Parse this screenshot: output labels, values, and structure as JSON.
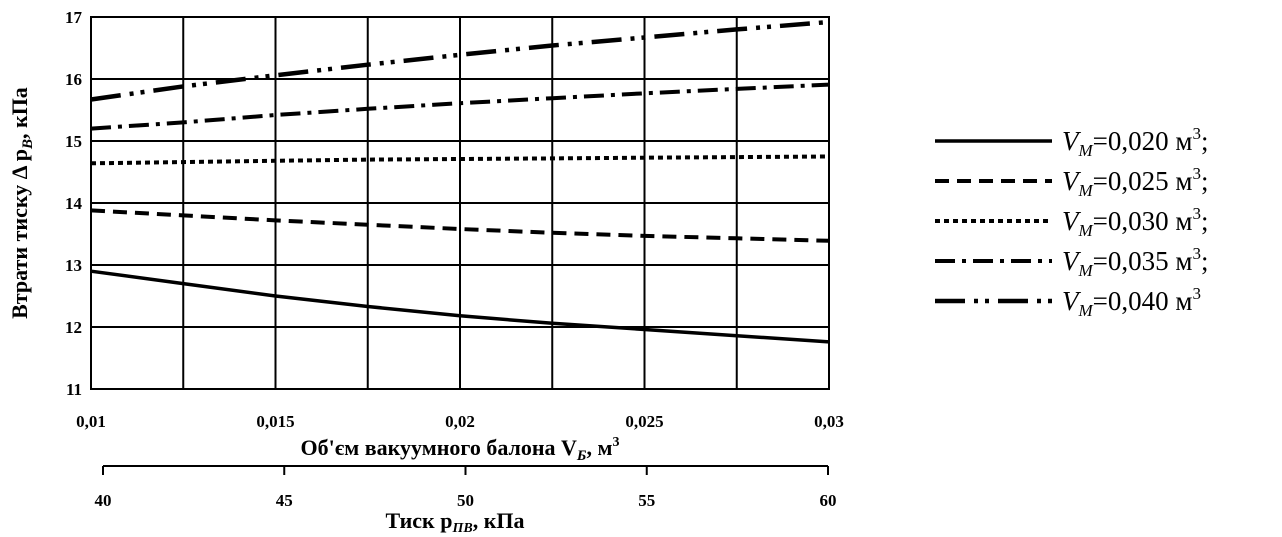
{
  "chart_data": {
    "type": "line",
    "ylabel": "Втрати тиску Δ p",
    "ylabel_sub": "B",
    "ylabel_unit": ", кПа",
    "xlabel": "Об'єм вакуумного балона V",
    "xlabel_sub": "Б",
    "xlabel_unit": ", м",
    "xlabel_sup": "3",
    "x2label": "Тиск p",
    "x2label_sub": "ПВ",
    "x2label_unit": ", кПа",
    "xlim": [
      0.01,
      0.03
    ],
    "ylim": [
      11,
      17
    ],
    "x_ticks": [
      "0,01",
      "0,015",
      "0,02",
      "0,025",
      "0,03"
    ],
    "x_tick_values": [
      0.01,
      0.015,
      0.02,
      0.025,
      0.03
    ],
    "x2lim": [
      40,
      60
    ],
    "x2_ticks": [
      "40",
      "45",
      "50",
      "55",
      "60"
    ],
    "x2_tick_values": [
      40,
      45,
      50,
      55,
      60
    ],
    "y_ticks": [
      "11",
      "12",
      "13",
      "14",
      "15",
      "16",
      "17"
    ],
    "y_tick_values": [
      11,
      12,
      13,
      14,
      15,
      16,
      17
    ],
    "vertical_grid_x": [
      0.0125,
      0.015,
      0.0175,
      0.02,
      0.0225,
      0.025,
      0.0275
    ],
    "grid": true,
    "legend_position": "right",
    "x": [
      0.01,
      0.0125,
      0.015,
      0.0175,
      0.02,
      0.0225,
      0.025,
      0.0275,
      0.03
    ],
    "series": [
      {
        "name": "V",
        "sub": "M",
        "value_text": "=0,020 м",
        "sup": "3",
        "tail": ";",
        "style": "solid",
        "values": [
          12.9,
          12.7,
          12.5,
          12.33,
          12.18,
          12.06,
          11.96,
          11.86,
          11.76
        ]
      },
      {
        "name": "V",
        "sub": "M",
        "value_text": "=0,025 м",
        "sup": "3",
        "tail": ";",
        "style": "dash",
        "values": [
          13.88,
          13.8,
          13.72,
          13.65,
          13.58,
          13.52,
          13.47,
          13.43,
          13.39
        ]
      },
      {
        "name": "V",
        "sub": "M",
        "value_text": "=0,030 м",
        "sup": "3",
        "tail": ";",
        "style": "dot",
        "values": [
          14.64,
          14.66,
          14.68,
          14.7,
          14.71,
          14.72,
          14.73,
          14.74,
          14.75
        ]
      },
      {
        "name": "V",
        "sub": "M",
        "value_text": "=0,035 м",
        "sup": "3",
        "tail": ";",
        "style": "dashdot",
        "values": [
          15.2,
          15.3,
          15.42,
          15.52,
          15.61,
          15.69,
          15.77,
          15.84,
          15.91
        ]
      },
      {
        "name": "V",
        "sub": "M",
        "value_text": "=0,040 м",
        "sup": "3",
        "tail": "",
        "style": "longdashdot",
        "values": [
          15.67,
          15.88,
          16.06,
          16.23,
          16.39,
          16.54,
          16.67,
          16.8,
          16.92
        ]
      }
    ]
  }
}
